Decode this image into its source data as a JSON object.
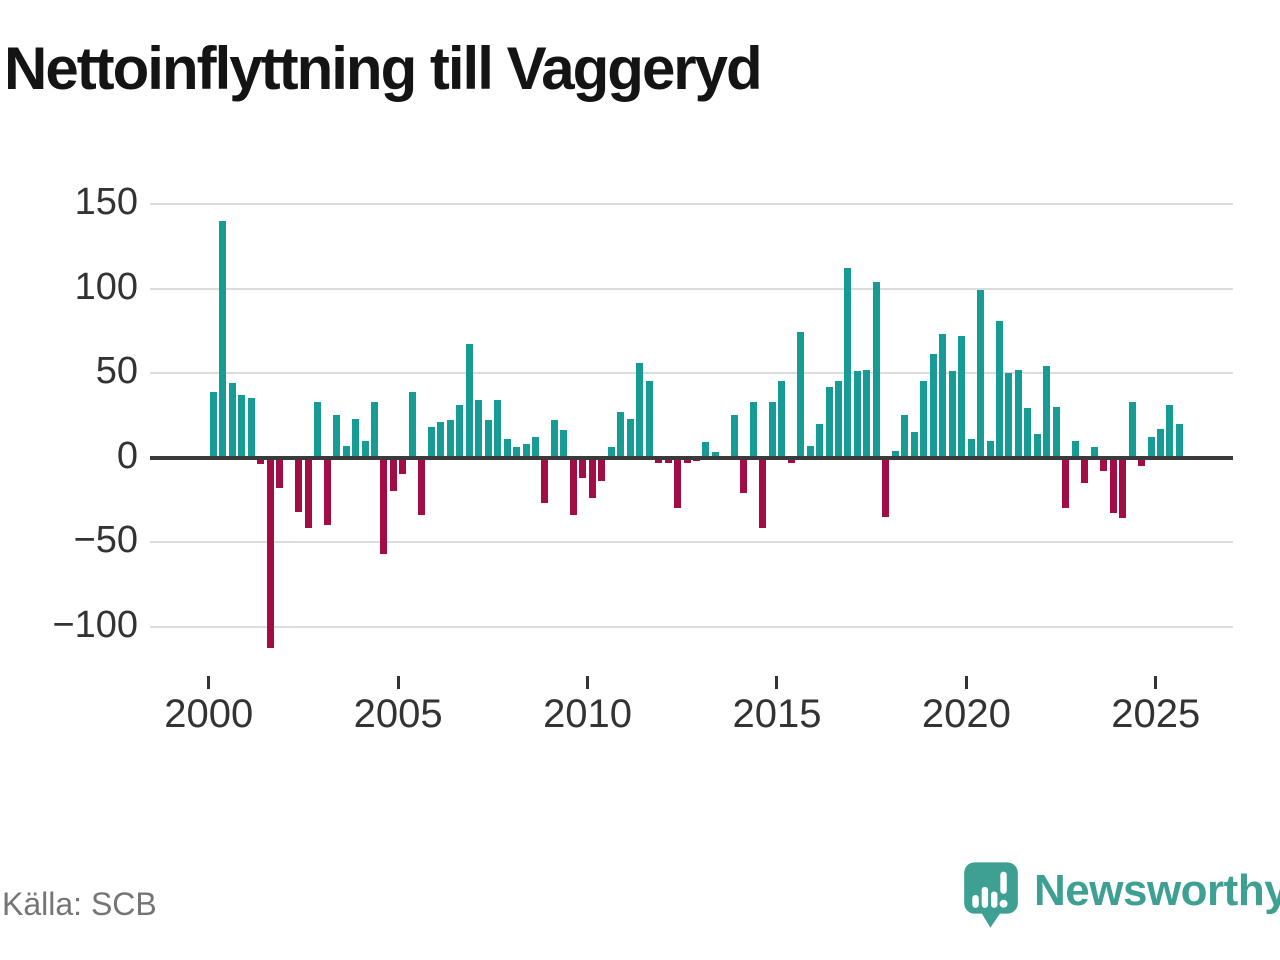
{
  "source": {
    "label": "Källa: SCB"
  },
  "branding": {
    "logo_text": "Newsworthy",
    "logo_icon": "bar-chart-speech-bubble-icon",
    "logo_color": "#3EA092"
  },
  "chart_data": {
    "type": "bar",
    "title": "Nettoinflyttning till Vaggeryd",
    "xlabel": "",
    "ylabel": "",
    "grid": true,
    "ylim": [
      -125,
      155
    ],
    "yticks": [
      150,
      100,
      50,
      0,
      -50,
      -100
    ],
    "xticks": [
      "2000",
      "2005",
      "2010",
      "2015",
      "2020",
      "2025"
    ],
    "positive_color": "#169C94",
    "negative_color": "#A30D45",
    "categories": [
      "2000Q1",
      "2000Q2",
      "2000Q3",
      "2000Q4",
      "2001Q1",
      "2001Q2",
      "2001Q3",
      "2001Q4",
      "2002Q1",
      "2002Q2",
      "2002Q3",
      "2002Q4",
      "2003Q1",
      "2003Q2",
      "2003Q3",
      "2003Q4",
      "2004Q1",
      "2004Q2",
      "2004Q3",
      "2004Q4",
      "2005Q1",
      "2005Q2",
      "2005Q3",
      "2005Q4",
      "2006Q1",
      "2006Q2",
      "2006Q3",
      "2006Q4",
      "2007Q1",
      "2007Q2",
      "2007Q3",
      "2007Q4",
      "2008Q1",
      "2008Q2",
      "2008Q3",
      "2008Q4",
      "2009Q1",
      "2009Q2",
      "2009Q3",
      "2009Q4",
      "2010Q1",
      "2010Q2",
      "2010Q3",
      "2010Q4",
      "2011Q1",
      "2011Q2",
      "2011Q3",
      "2011Q4",
      "2012Q1",
      "2012Q2",
      "2012Q3",
      "2012Q4",
      "2013Q1",
      "2013Q2",
      "2013Q3",
      "2013Q4",
      "2014Q1",
      "2014Q2",
      "2014Q3",
      "2014Q4",
      "2015Q1",
      "2015Q2",
      "2015Q3",
      "2015Q4",
      "2016Q1",
      "2016Q2",
      "2016Q3",
      "2016Q4",
      "2017Q1",
      "2017Q2",
      "2017Q3",
      "2017Q4",
      "2018Q1",
      "2018Q2",
      "2018Q3",
      "2018Q4",
      "2019Q1",
      "2019Q2",
      "2019Q3",
      "2019Q4",
      "2020Q1",
      "2020Q2",
      "2020Q3",
      "2020Q4",
      "2021Q1",
      "2021Q2",
      "2021Q3",
      "2021Q4",
      "2022Q1",
      "2022Q2",
      "2022Q3",
      "2022Q4",
      "2023Q1",
      "2023Q2",
      "2023Q3",
      "2023Q4",
      "2024Q1",
      "2024Q2",
      "2024Q3",
      "2024Q4",
      "2025Q1",
      "2025Q2",
      "2025Q3"
    ],
    "values": [
      39,
      140,
      44,
      37,
      35,
      -4,
      -113,
      -18,
      0,
      -32,
      -42,
      33,
      -40,
      25,
      7,
      23,
      10,
      33,
      -57,
      -20,
      -10,
      39,
      -34,
      18,
      21,
      22,
      31,
      67,
      34,
      22,
      34,
      11,
      6,
      8,
      12,
      -27,
      22,
      16,
      -34,
      -12,
      -24,
      -14,
      6,
      27,
      23,
      56,
      45,
      -3,
      -3,
      -30,
      -3,
      -2,
      9,
      3,
      0,
      25,
      -21,
      33,
      -42,
      33,
      45,
      -3,
      74,
      7,
      20,
      42,
      45,
      112,
      51,
      52,
      104,
      -35,
      4,
      25,
      15,
      45,
      61,
      73,
      51,
      72,
      11,
      99,
      10,
      81,
      50,
      52,
      29,
      14,
      54,
      30,
      -30,
      10,
      -15,
      6,
      -8,
      -33,
      -36,
      33,
      -5,
      12,
      17,
      31,
      20
    ]
  }
}
